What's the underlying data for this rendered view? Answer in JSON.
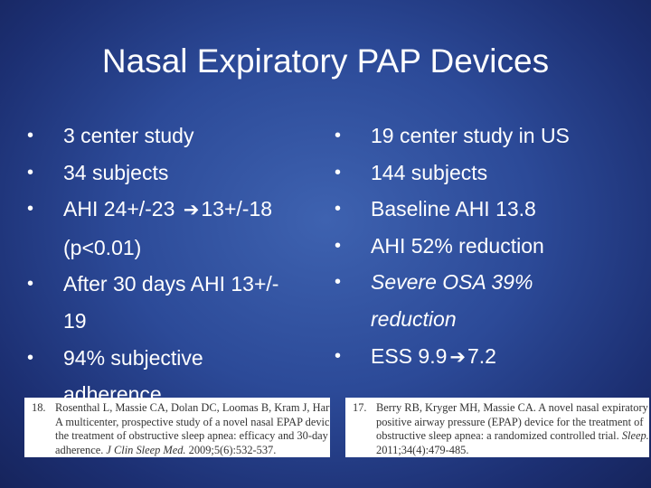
{
  "title": "Nasal Expiratory PAP Devices",
  "bullet_char": "•",
  "arrow_glyph": "➔",
  "left_column": {
    "items": [
      {
        "text": "3 center study"
      },
      {
        "text": "34 subjects"
      },
      {
        "text_before": "AHI 24+/-23",
        "text_after": "13+/-18",
        "line2": "(p<0.01)"
      },
      {
        "text": "After 30 days AHI 13+/-",
        "line2": "19"
      },
      {
        "text": "94% subjective",
        "line2": "adherence"
      }
    ]
  },
  "right_column": {
    "items": [
      {
        "text": "19 center study in US"
      },
      {
        "text": "144 subjects"
      },
      {
        "text": "Baseline AHI 13.8"
      },
      {
        "text": "AHI 52% reduction"
      },
      {
        "text": "Severe OSA 39%",
        "line2": "reduction"
      },
      {
        "text_before": "ESS 9.9",
        "text_after": "7.2"
      }
    ]
  },
  "references": {
    "left": {
      "number": "18.",
      "lines": [
        "Rosenthal L, Massie CA, Dolan DC, Loomas B, Kram J, Hart RW.",
        "A multicenter, prospective study of a novel nasal EPAP device in",
        "the treatment of obstructive sleep apnea: efficacy and 30-day",
        "adherence."
      ],
      "journal": "J Clin Sleep Med.",
      "citation": "2009;5(6):532-537."
    },
    "right": {
      "number": "17.",
      "lines": [
        "Berry RB, Kryger MH, Massie CA. A novel nasal expiratory",
        "positive airway pressure (EPAP) device for the treatment of",
        "obstructive sleep apnea: a randomized controlled trial."
      ],
      "journal": "Sleep.",
      "citation": "2011;34(4):479-485."
    }
  }
}
